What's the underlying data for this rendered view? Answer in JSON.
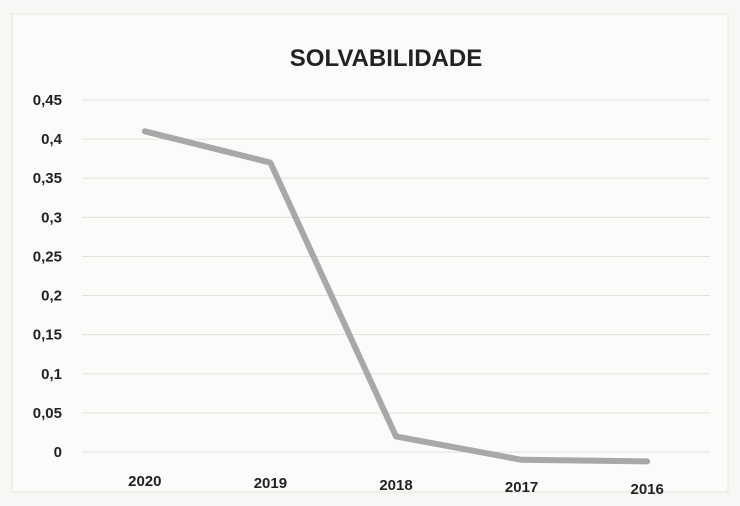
{
  "chart_data": {
    "type": "line",
    "title": "SOLVABILIDADE",
    "xlabel": "",
    "ylabel": "",
    "categories": [
      "2020",
      "2019",
      "2018",
      "2017",
      "2016"
    ],
    "series": [
      {
        "values": [
          0.41,
          0.37,
          0.02,
          -0.01,
          -0.012
        ],
        "color": "#a8a8a8"
      }
    ],
    "yticks": [
      "0",
      "0,05",
      "0,1",
      "0,15",
      "0,2",
      "0,25",
      "0,3",
      "0,35",
      "0,4",
      "0,45"
    ],
    "ylim": [
      0,
      0.45
    ],
    "grid": true,
    "legend": "none"
  }
}
